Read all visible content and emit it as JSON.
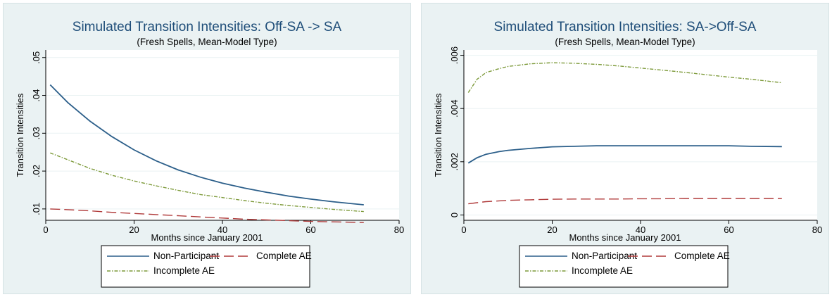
{
  "chart_data": [
    {
      "type": "line",
      "title": "Simulated Transition Intensities: Off-SA -> SA",
      "subtitle": "(Fresh Spells, Mean-Model Type)",
      "xlabel": "Months since January 2001",
      "ylabel": "Transition Intensities",
      "xlim": [
        0,
        80
      ],
      "ylim": [
        0.007,
        0.052
      ],
      "xticks": [
        0,
        20,
        40,
        60,
        80
      ],
      "yticks": [
        0.01,
        0.02,
        0.03,
        0.04,
        0.05
      ],
      "xtick_labels": [
        "0",
        "20",
        "40",
        "60",
        "80"
      ],
      "ytick_labels": [
        ".01",
        ".02",
        ".03",
        ".04",
        ".05"
      ],
      "grid": true,
      "legend_position": "bottom",
      "x": [
        1,
        5,
        10,
        15,
        20,
        25,
        30,
        35,
        40,
        45,
        50,
        55,
        60,
        65,
        72
      ],
      "series": [
        {
          "name": "Non-Participant",
          "color": "#2c5f8a",
          "dash": "solid",
          "values": [
            0.0428,
            0.0381,
            0.0332,
            0.0291,
            0.0256,
            0.0227,
            0.0203,
            0.0184,
            0.0168,
            0.0155,
            0.0144,
            0.0134,
            0.0126,
            0.0119,
            0.0111
          ]
        },
        {
          "name": "Complete AE",
          "color": "#b03a3a",
          "dash": "long",
          "values": [
            0.01,
            0.0098,
            0.0095,
            0.0091,
            0.0088,
            0.0085,
            0.0082,
            0.0079,
            0.0076,
            0.0073,
            0.0071,
            0.0069,
            0.0067,
            0.0066,
            0.0064
          ]
        },
        {
          "name": "Incomplete AE",
          "color": "#7d9a3a",
          "dash": "dashdot",
          "values": [
            0.0248,
            0.023,
            0.0207,
            0.0189,
            0.0174,
            0.0161,
            0.0149,
            0.0138,
            0.013,
            0.0122,
            0.0115,
            0.0109,
            0.0104,
            0.0099,
            0.0093
          ]
        }
      ]
    },
    {
      "type": "line",
      "title": "Simulated Transition Intensities: SA->Off-SA",
      "subtitle": "(Fresh Spells, Mean-Model Type)",
      "xlabel": "Months since January 2001",
      "ylabel": "Transition Intensities",
      "xlim": [
        0,
        80
      ],
      "ylim": [
        -0.0002,
        0.0062
      ],
      "xticks": [
        0,
        20,
        40,
        60,
        80
      ],
      "yticks": [
        0,
        0.002,
        0.004,
        0.006
      ],
      "xtick_labels": [
        "0",
        "20",
        "40",
        "60",
        "80"
      ],
      "ytick_labels": [
        "0",
        ".002",
        ".004",
        ".006"
      ],
      "grid": true,
      "legend_position": "bottom",
      "x": [
        1,
        3,
        5,
        8,
        10,
        15,
        20,
        25,
        30,
        35,
        40,
        45,
        50,
        55,
        60,
        65,
        72
      ],
      "series": [
        {
          "name": "Non-Participant",
          "color": "#2c5f8a",
          "dash": "solid",
          "values": [
            0.00195,
            0.00215,
            0.00228,
            0.00238,
            0.00243,
            0.0025,
            0.00256,
            0.00258,
            0.0026,
            0.0026,
            0.0026,
            0.0026,
            0.0026,
            0.0026,
            0.0026,
            0.00258,
            0.00257
          ]
        },
        {
          "name": "Complete AE",
          "color": "#b03a3a",
          "dash": "long",
          "values": [
            0.00042,
            0.00046,
            0.0005,
            0.00053,
            0.00055,
            0.00057,
            0.00059,
            0.0006,
            0.0006,
            0.0006,
            0.00061,
            0.00061,
            0.00062,
            0.00062,
            0.00062,
            0.00062,
            0.00062
          ]
        },
        {
          "name": "Incomplete AE",
          "color": "#7d9a3a",
          "dash": "dashdot",
          "values": [
            0.0046,
            0.0051,
            0.00535,
            0.0055,
            0.00558,
            0.00568,
            0.00572,
            0.0057,
            0.00566,
            0.0056,
            0.00552,
            0.00544,
            0.00536,
            0.00527,
            0.00518,
            0.0051,
            0.00497
          ]
        }
      ]
    }
  ]
}
